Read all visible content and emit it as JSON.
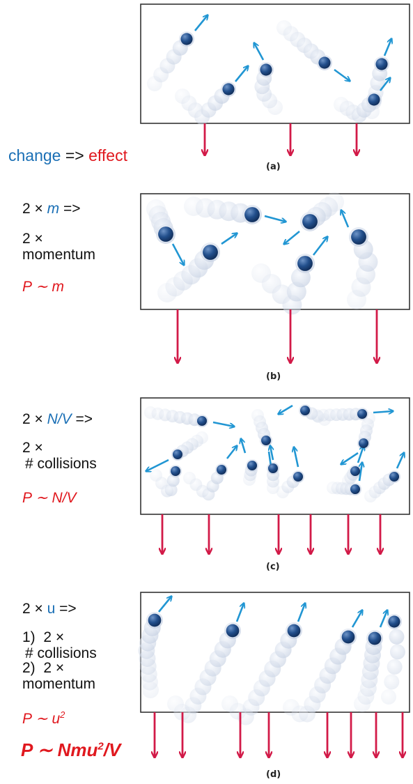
{
  "colors": {
    "molecule": "#1f4f8a",
    "velocity_arrow": "#2196d3",
    "force_arrow": "#d21a48",
    "text_blue": "#1a6fb5",
    "text_red": "#e0181e"
  },
  "legend": {
    "change": "change",
    "implies": "=>",
    "effect": "effect"
  },
  "panels": {
    "a": {
      "letter": "(a)"
    },
    "b": {
      "letter": "(b)",
      "factor": "2 ×",
      "var": "m",
      "implies": "=>",
      "result_factor": "2 ×",
      "result_quantity": "momentum",
      "relation": "P ∼ m"
    },
    "c": {
      "letter": "(c)",
      "factor": "2 ×",
      "var": "N/V",
      "implies": "=>",
      "result_factor": "2 ×",
      "result_quantity": "# collisions",
      "relation": "P ∼ N/V"
    },
    "d": {
      "letter": "(d)",
      "factor": "2 ×",
      "var": "u",
      "implies": "=>",
      "line1_num": "1)",
      "line1_factor": "2 ×",
      "line1_quantity": "# collisions",
      "line2_num": "2)",
      "line2_factor": "2 ×",
      "line2_quantity": "momentum",
      "relation_base": "P ∼ u",
      "relation_exp": "2",
      "final_base": "P ∼ Nmu",
      "final_exp": "2",
      "final_tail": "/V"
    }
  }
}
